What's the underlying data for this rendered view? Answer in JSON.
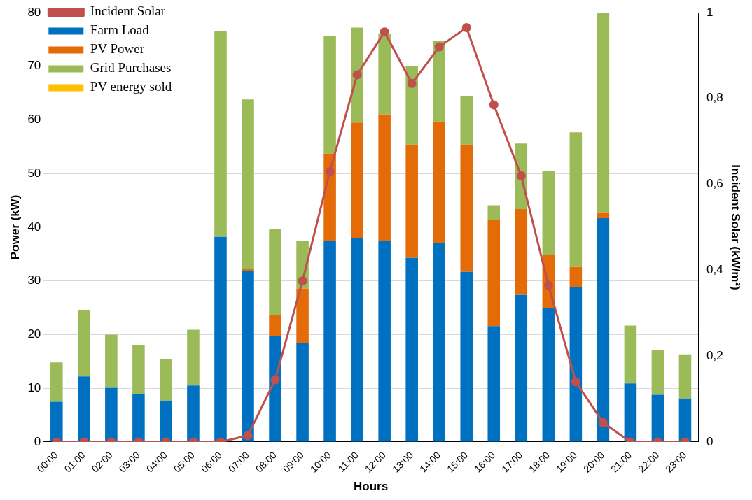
{
  "chart_data": {
    "type": "bar",
    "stacked": true,
    "xlabel": "Hours",
    "ylabel": "Power (kW)",
    "y2label": "Incident Solar (kW/m²)",
    "categories": [
      "00:00",
      "01:00",
      "02:00",
      "03:00",
      "04:00",
      "05:00",
      "06:00",
      "07:00",
      "08:00",
      "09:00",
      "10:00",
      "11:00",
      "12:00",
      "13:00",
      "14:00",
      "15:00",
      "16:00",
      "17:00",
      "18:00",
      "19:00",
      "20:00",
      "21:00",
      "22:00",
      "23:00"
    ],
    "series": [
      {
        "name": "Farm Load",
        "color": "#0070c0",
        "values": [
          7.5,
          12.2,
          10.1,
          9.0,
          7.7,
          10.5,
          38.2,
          31.9,
          19.8,
          18.5,
          37.4,
          38.0,
          37.4,
          34.3,
          37.0,
          31.7,
          21.6,
          27.4,
          25.0,
          28.9,
          41.7,
          10.9,
          8.8,
          8.1
        ]
      },
      {
        "name": "PV Power",
        "color": "#e36c09",
        "values": [
          0,
          0,
          0,
          0,
          0,
          0,
          0,
          0.3,
          3.9,
          10.1,
          16.3,
          21.5,
          23.6,
          21.1,
          22.7,
          23.7,
          19.7,
          16.0,
          9.8,
          3.7,
          1.1,
          0,
          0,
          0
        ]
      },
      {
        "name": "Grid Purchases",
        "color": "#9bbb59",
        "values": [
          7.3,
          12.3,
          9.9,
          9.1,
          7.7,
          10.4,
          38.3,
          31.6,
          16.0,
          8.9,
          21.9,
          17.7,
          15.0,
          14.6,
          15.0,
          9.1,
          2.8,
          12.2,
          15.7,
          25.1,
          37.2,
          10.8,
          8.3,
          8.2
        ]
      },
      {
        "name": "PV energy sold",
        "color": "#ffc000",
        "values": [
          0,
          0,
          0,
          0,
          0,
          0,
          0,
          0,
          0,
          0,
          0,
          0,
          0,
          0,
          0,
          0,
          0,
          0,
          0,
          0,
          0,
          0,
          0,
          0
        ]
      },
      {
        "name": "Incident Solar",
        "type": "line",
        "axis": "y2",
        "color": "#c0504d",
        "marker": "circle",
        "values": [
          0,
          0,
          0,
          0,
          0,
          0,
          0,
          0.015,
          0.145,
          0.375,
          0.63,
          0.855,
          0.955,
          0.835,
          0.92,
          0.965,
          0.785,
          0.62,
          0.365,
          0.14,
          0.045,
          0,
          0,
          0
        ]
      }
    ],
    "ylim": [
      0,
      80
    ],
    "yticks": [
      0,
      10,
      20,
      30,
      40,
      50,
      60,
      70,
      80
    ],
    "y2lim": [
      0,
      1
    ],
    "y2ticks": [
      0,
      {
        "value": 0.2,
        "label": "0,2"
      },
      {
        "value": 0.4,
        "label": "0,4"
      },
      {
        "value": 0.6,
        "label": "0,6"
      },
      {
        "value": 0.8,
        "label": "0,8"
      },
      1
    ],
    "grid": "y",
    "legend": "top left"
  }
}
